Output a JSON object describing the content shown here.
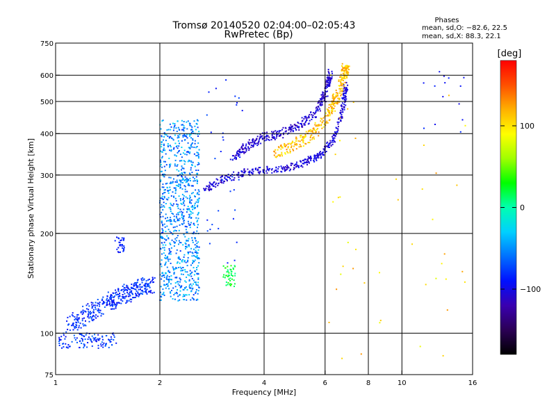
{
  "chart_data": {
    "type": "scatter",
    "title": "Tromsø 20140520 02:04:00–02:05:43",
    "subtitle": "RwPretec (Bp)",
    "xlabel": "Frequency [MHz]",
    "ylabel": "Stationary phase Virtual Height [km]",
    "x_scale": "log",
    "y_scale": "log",
    "xlim": [
      1,
      16
    ],
    "ylim": [
      75,
      750
    ],
    "x_ticks": [
      1,
      2,
      4,
      6,
      8,
      10,
      16
    ],
    "x_tick_labels": [
      "1",
      "2",
      "4",
      "6",
      "8",
      "10",
      "16"
    ],
    "y_ticks": [
      75,
      100,
      200,
      300,
      400,
      500,
      600,
      750
    ],
    "y_tick_labels": [
      "75",
      "100",
      "200",
      "300",
      "400",
      "500",
      "600",
      "750"
    ],
    "grid_x": [
      2,
      4,
      6,
      8,
      10
    ],
    "grid_y": [
      100,
      200,
      300,
      400,
      500,
      600
    ],
    "grid": true,
    "info": {
      "heading": "Phases",
      "line1": "mean, sd,O: −82.6, 22.5",
      "line2": "mean, sd,X:  88.3, 22.1"
    },
    "colorbar": {
      "label": "[deg]",
      "min": -180,
      "max": 180,
      "ticks": [
        100,
        0,
        -100
      ],
      "tick_labels": [
        "100",
        "0",
        "−100"
      ],
      "colors": [
        "#000000",
        "#2b0055",
        "#3a00b0",
        "#0010ff",
        "#0070ff",
        "#00d0ff",
        "#00ffb0",
        "#00ff00",
        "#a0ff00",
        "#ffff00",
        "#ffb000",
        "#ff5000",
        "#ff0000"
      ]
    },
    "clusters": [
      {
        "name": "E-layer low band",
        "x": [
          1.0,
          1.5
        ],
        "y": [
          90,
          100
        ],
        "phase": [
          -100,
          -60
        ],
        "n": 110
      },
      {
        "name": "ramp 1.1-1.9",
        "path": [
          [
            1.1,
            105
          ],
          [
            1.3,
            118
          ],
          [
            1.5,
            128
          ],
          [
            1.7,
            135
          ],
          [
            1.9,
            140
          ]
        ],
        "spread": 0.06,
        "phase": [
          -100,
          -65
        ],
        "n": 380
      },
      {
        "name": "blob 1.55",
        "x": [
          1.48,
          1.58
        ],
        "y": [
          175,
          195
        ],
        "phase": [
          -95,
          -80
        ],
        "n": 30
      },
      {
        "name": "column 2.0-2.6",
        "x": [
          2.0,
          2.6
        ],
        "y": [
          125,
          440
        ],
        "phase": [
          -80,
          -25
        ],
        "n": 900
      },
      {
        "name": "F-trace lower",
        "path": [
          [
            2.7,
            270
          ],
          [
            3.0,
            290
          ],
          [
            3.5,
            305
          ],
          [
            4.0,
            310
          ],
          [
            4.6,
            315
          ],
          [
            5.2,
            325
          ],
          [
            5.8,
            345
          ],
          [
            6.3,
            380
          ],
          [
            6.6,
            430
          ],
          [
            6.8,
            500
          ],
          [
            6.9,
            560
          ]
        ],
        "spread": 0.025,
        "phase": [
          -120,
          -90
        ],
        "n": 420
      },
      {
        "name": "F-trace upper",
        "path": [
          [
            3.2,
            330
          ],
          [
            3.6,
            370
          ],
          [
            4.0,
            390
          ],
          [
            4.5,
            400
          ],
          [
            5.0,
            420
          ],
          [
            5.5,
            450
          ],
          [
            5.9,
            500
          ],
          [
            6.1,
            560
          ],
          [
            6.2,
            610
          ]
        ],
        "spread": 0.03,
        "phase": [
          -120,
          -95
        ],
        "n": 360
      },
      {
        "name": "X-trace",
        "path": [
          [
            4.3,
            350
          ],
          [
            4.8,
            365
          ],
          [
            5.3,
            390
          ],
          [
            5.8,
            420
          ],
          [
            6.2,
            460
          ],
          [
            6.5,
            520
          ],
          [
            6.8,
            600
          ],
          [
            6.9,
            640
          ]
        ],
        "spread": 0.04,
        "phase": [
          90,
          135
        ],
        "n": 340
      },
      {
        "name": "green patch",
        "x": [
          3.05,
          3.3
        ],
        "y": [
          138,
          160
        ],
        "phase": [
          5,
          40
        ],
        "n": 45
      },
      {
        "name": "scatter 2.7-3.5",
        "x": [
          2.7,
          3.5
        ],
        "y": [
          150,
          600
        ],
        "phase": [
          -95,
          -70
        ],
        "n": 35
      },
      {
        "name": "right spread",
        "x": [
          6.0,
          15.5
        ],
        "y": [
          78,
          620
        ],
        "phase": [
          80,
          130
        ],
        "n": 45
      },
      {
        "name": "upper right blue",
        "x": [
          11.5,
          15.5
        ],
        "y": [
          400,
          620
        ],
        "phase": [
          -100,
          -80
        ],
        "n": 14
      }
    ]
  }
}
